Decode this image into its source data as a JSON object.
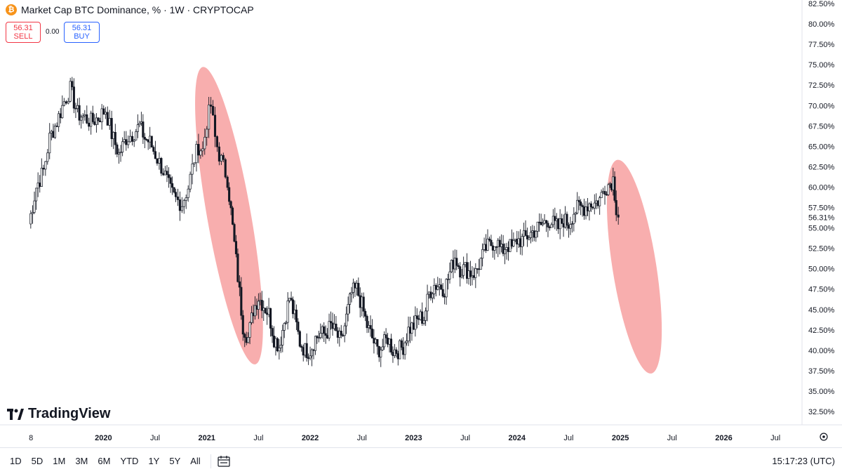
{
  "header": {
    "icon": "bitcoin-icon",
    "title": "Market Cap BTC Dominance, % · 1W · CRYPTOCAP"
  },
  "trade": {
    "sell_value": "56.31",
    "sell_label": "SELL",
    "spread": "0.00",
    "buy_value": "56.31",
    "buy_label": "BUY"
  },
  "brand": "TradingView",
  "toolbar": {
    "timeframes": [
      "1D",
      "5D",
      "1M",
      "3M",
      "6M",
      "YTD",
      "1Y",
      "5Y",
      "All"
    ],
    "time": "15:17:23 (UTC)"
  },
  "colors": {
    "up": "#26a69a",
    "candle": "#131722",
    "highlight": "#f7a0a0",
    "price_label_bg": "#131722"
  },
  "chart_data": {
    "type": "candlestick",
    "title": "Market Cap BTC Dominance, % · 1W · CRYPTOCAP",
    "y_axis_side": "right",
    "y_unit": "%",
    "ylim": [
      31.5,
      83.0
    ],
    "y_ticks": [
      "82.50%",
      "80.00%",
      "77.50%",
      "75.00%",
      "72.50%",
      "70.00%",
      "67.50%",
      "65.00%",
      "62.50%",
      "60.00%",
      "57.50%",
      "55.00%",
      "52.50%",
      "50.00%",
      "47.50%",
      "45.00%",
      "42.50%",
      "40.00%",
      "37.50%",
      "35.00%",
      "32.50%"
    ],
    "x_ticks": [
      {
        "label": "8",
        "t": 2019.3
      },
      {
        "label": "2020",
        "t": 2020.0
      },
      {
        "label": "Jul",
        "t": 2020.5
      },
      {
        "label": "2021",
        "t": 2021.0
      },
      {
        "label": "Jul",
        "t": 2021.5
      },
      {
        "label": "2022",
        "t": 2022.0
      },
      {
        "label": "Jul",
        "t": 2022.5
      },
      {
        "label": "2023",
        "t": 2023.0
      },
      {
        "label": "Jul",
        "t": 2023.5
      },
      {
        "label": "2024",
        "t": 2024.0
      },
      {
        "label": "Jul",
        "t": 2024.5
      },
      {
        "label": "2025",
        "t": 2025.0
      },
      {
        "label": "Jul",
        "t": 2025.5
      },
      {
        "label": "2026",
        "t": 2026.0
      },
      {
        "label": "Jul",
        "t": 2026.5
      }
    ],
    "last_price": 56.31,
    "last_price_label": "56.31%",
    "series_close": [
      [
        2019.28,
        55.5
      ],
      [
        2019.35,
        60.0
      ],
      [
        2019.42,
        62.0
      ],
      [
        2019.48,
        66.0
      ],
      [
        2019.55,
        68.0
      ],
      [
        2019.62,
        70.5
      ],
      [
        2019.68,
        72.0
      ],
      [
        2019.75,
        69.0
      ],
      [
        2019.82,
        68.5
      ],
      [
        2019.88,
        68.0
      ],
      [
        2019.95,
        68.5
      ],
      [
        2020.02,
        69.5
      ],
      [
        2020.08,
        66.5
      ],
      [
        2020.15,
        64.0
      ],
      [
        2020.22,
        66.0
      ],
      [
        2020.28,
        66.5
      ],
      [
        2020.35,
        67.5
      ],
      [
        2020.4,
        66.0
      ],
      [
        2020.45,
        65.5
      ],
      [
        2020.52,
        63.5
      ],
      [
        2020.58,
        62.0
      ],
      [
        2020.65,
        59.5
      ],
      [
        2020.7,
        58.5
      ],
      [
        2020.76,
        58.0
      ],
      [
        2020.82,
        60.0
      ],
      [
        2020.88,
        63.5
      ],
      [
        2020.92,
        65.0
      ],
      [
        2020.96,
        64.5
      ],
      [
        2021.0,
        68.0
      ],
      [
        2021.04,
        70.0
      ],
      [
        2021.08,
        66.0
      ],
      [
        2021.12,
        64.0
      ],
      [
        2021.16,
        62.5
      ],
      [
        2021.2,
        61.0
      ],
      [
        2021.25,
        55.0
      ],
      [
        2021.3,
        49.0
      ],
      [
        2021.35,
        43.0
      ],
      [
        2021.4,
        41.5
      ],
      [
        2021.45,
        45.0
      ],
      [
        2021.5,
        46.5
      ],
      [
        2021.55,
        45.5
      ],
      [
        2021.6,
        44.5
      ],
      [
        2021.65,
        41.5
      ],
      [
        2021.7,
        40.5
      ],
      [
        2021.75,
        43.5
      ],
      [
        2021.8,
        46.5
      ],
      [
        2021.85,
        44.0
      ],
      [
        2021.9,
        41.0
      ],
      [
        2021.95,
        40.0
      ],
      [
        2022.0,
        40.0
      ],
      [
        2022.05,
        41.5
      ],
      [
        2022.1,
        42.0
      ],
      [
        2022.15,
        42.0
      ],
      [
        2022.2,
        43.0
      ],
      [
        2022.25,
        42.0
      ],
      [
        2022.3,
        41.0
      ],
      [
        2022.35,
        44.0
      ],
      [
        2022.4,
        47.0
      ],
      [
        2022.45,
        47.5
      ],
      [
        2022.5,
        45.5
      ],
      [
        2022.55,
        43.0
      ],
      [
        2022.6,
        41.5
      ],
      [
        2022.65,
        40.0
      ],
      [
        2022.7,
        40.5
      ],
      [
        2022.75,
        41.5
      ],
      [
        2022.8,
        40.0
      ],
      [
        2022.85,
        40.0
      ],
      [
        2022.9,
        40.5
      ],
      [
        2022.95,
        42.5
      ],
      [
        2023.0,
        43.0
      ],
      [
        2023.05,
        44.0
      ],
      [
        2023.1,
        44.0
      ],
      [
        2023.15,
        47.0
      ],
      [
        2023.2,
        48.0
      ],
      [
        2023.25,
        48.0
      ],
      [
        2023.3,
        47.5
      ],
      [
        2023.35,
        49.5
      ],
      [
        2023.4,
        51.5
      ],
      [
        2023.45,
        50.0
      ],
      [
        2023.5,
        50.0
      ],
      [
        2023.55,
        49.5
      ],
      [
        2023.6,
        49.5
      ],
      [
        2023.65,
        51.0
      ],
      [
        2023.7,
        52.5
      ],
      [
        2023.75,
        53.0
      ],
      [
        2023.8,
        53.5
      ],
      [
        2023.85,
        52.0
      ],
      [
        2023.9,
        53.0
      ],
      [
        2023.95,
        52.5
      ],
      [
        2024.0,
        53.5
      ],
      [
        2024.05,
        53.5
      ],
      [
        2024.1,
        54.0
      ],
      [
        2024.15,
        54.5
      ],
      [
        2024.2,
        55.0
      ],
      [
        2024.25,
        55.5
      ],
      [
        2024.3,
        56.0
      ],
      [
        2024.35,
        55.5
      ],
      [
        2024.4,
        55.0
      ],
      [
        2024.45,
        56.0
      ],
      [
        2024.5,
        55.5
      ],
      [
        2024.55,
        57.0
      ],
      [
        2024.6,
        57.5
      ],
      [
        2024.65,
        57.5
      ],
      [
        2024.7,
        58.0
      ],
      [
        2024.75,
        58.0
      ],
      [
        2024.8,
        58.5
      ],
      [
        2024.85,
        60.0
      ],
      [
        2024.9,
        60.5
      ],
      [
        2024.93,
        61.0
      ],
      [
        2024.96,
        57.5
      ],
      [
        2024.98,
        56.31
      ]
    ],
    "annotations": [
      {
        "type": "ellipse",
        "label": "",
        "t_range": [
          2020.83,
          2021.6
        ],
        "y_range": [
          38.0,
          75.0
        ]
      },
      {
        "type": "ellipse",
        "label": "",
        "t_range": [
          2024.75,
          2025.52
        ],
        "y_range": [
          37.0,
          63.5
        ]
      }
    ],
    "grid": false,
    "legend": "none"
  }
}
